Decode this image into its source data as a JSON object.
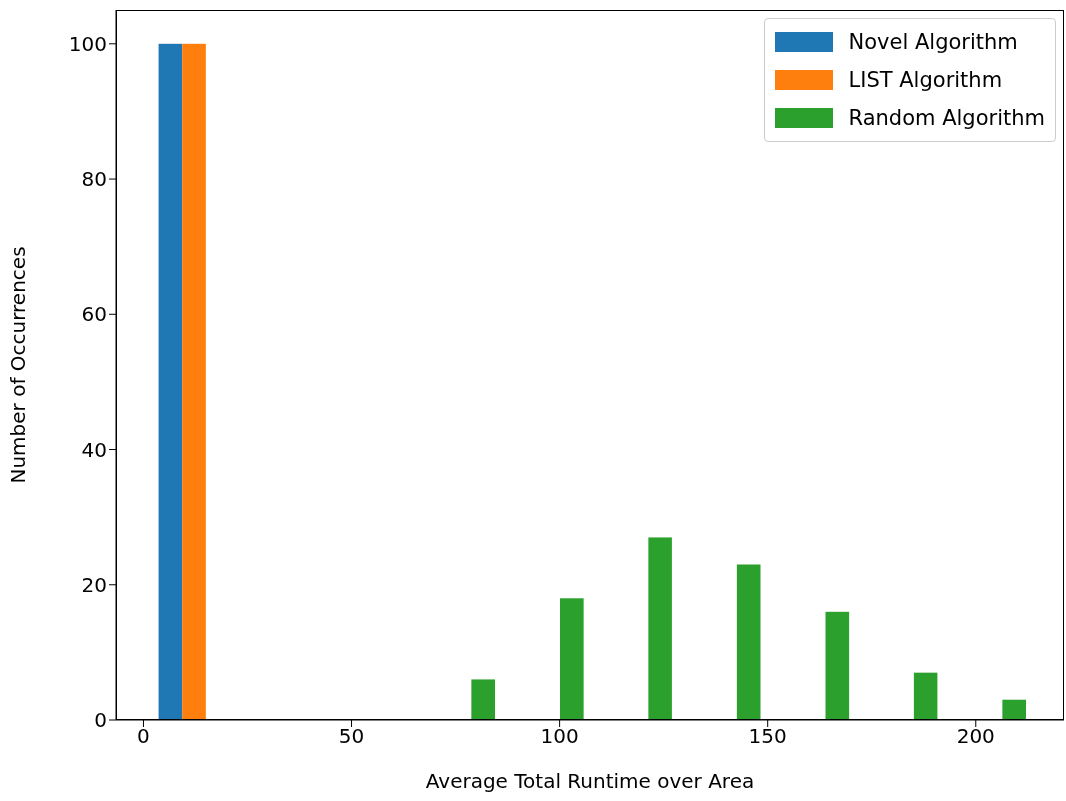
{
  "chart_data": {
    "type": "histogram",
    "xlabel": "Average Total Runtime over Area",
    "ylabel": "Number of Occurrences",
    "bins": [
      1.5,
      22.8,
      44.0,
      65.3,
      86.6,
      107.9,
      129.1,
      150.4,
      171.7,
      192.9,
      214.2
    ],
    "series": [
      {
        "name": "Novel Algorithm",
        "color": "#1f77b4",
        "values": [
          100,
          0,
          0,
          0,
          0,
          0,
          0,
          0,
          0,
          0
        ]
      },
      {
        "name": "LIST Algorithm",
        "color": "#ff7f0e",
        "values": [
          100,
          0,
          0,
          0,
          0,
          0,
          0,
          0,
          0,
          0
        ]
      },
      {
        "name": "Random Algorithm",
        "color": "#2ca02c",
        "values": [
          0,
          0,
          0,
          6,
          18,
          27,
          23,
          16,
          7,
          3
        ]
      }
    ],
    "xlim": [
      -6.6,
      221.2
    ],
    "xticks": [
      0,
      50,
      100,
      150,
      200
    ],
    "ylim": [
      0,
      105
    ],
    "yticks": [
      0,
      20,
      40,
      60,
      80,
      100
    ],
    "legend": "top right",
    "grid": false
  }
}
